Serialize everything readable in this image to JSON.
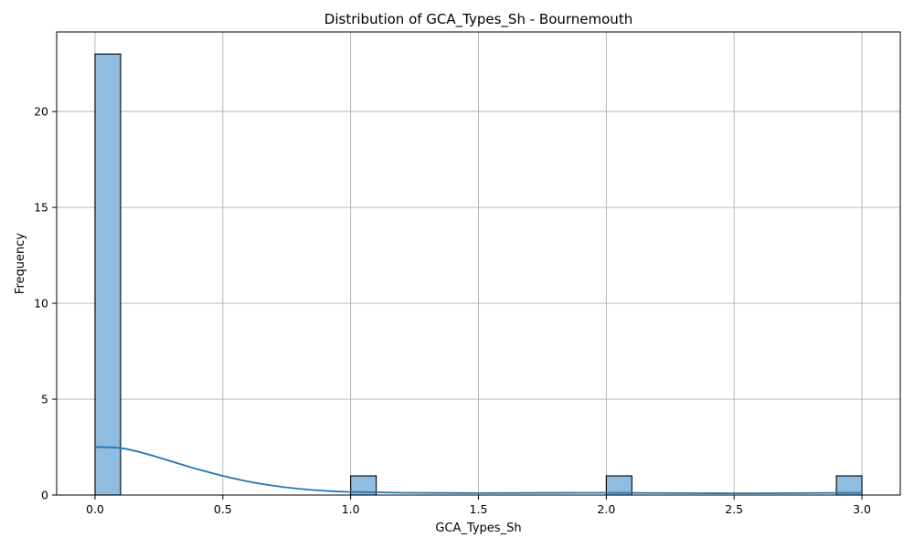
{
  "chart_data": {
    "type": "bar",
    "subtype": "histogram-with-kde",
    "title": "Distribution of GCA_Types_Sh - Bournemouth",
    "xlabel": "GCA_Types_Sh",
    "ylabel": "Frequency",
    "xlim": [
      -0.15,
      3.15
    ],
    "ylim": [
      0,
      24.15
    ],
    "x_ticks": [
      "0.0",
      "0.5",
      "1.0",
      "1.5",
      "2.0",
      "2.5",
      "3.0"
    ],
    "x_tick_values": [
      0,
      0.5,
      1,
      1.5,
      2,
      2.5,
      3
    ],
    "y_ticks": [
      "0",
      "5",
      "10",
      "15",
      "20"
    ],
    "y_tick_values": [
      0,
      5,
      10,
      15,
      20
    ],
    "grid": true,
    "bin_width": 0.1,
    "bins": [
      {
        "x0": 0.0,
        "x1": 0.1,
        "count": 23
      },
      {
        "x0": 1.0,
        "x1": 1.1,
        "count": 1
      },
      {
        "x0": 2.0,
        "x1": 2.1,
        "count": 1
      },
      {
        "x0": 2.9,
        "x1": 3.0,
        "count": 1
      }
    ],
    "kde": {
      "x": [
        0,
        0.1,
        0.2,
        0.3,
        0.4,
        0.5,
        0.6,
        0.7,
        0.8,
        0.9,
        1.0,
        1.2,
        1.5,
        2.0,
        2.5,
        3.0
      ],
      "y": [
        2.5,
        2.45,
        2.15,
        1.75,
        1.35,
        1.0,
        0.7,
        0.48,
        0.32,
        0.22,
        0.16,
        0.12,
        0.1,
        0.12,
        0.09,
        0.12
      ]
    },
    "colors": {
      "bar_fill": "#8fbcdf",
      "bar_edge": "#000000",
      "kde_line": "#1f77b4",
      "grid": "#b0b0b0"
    }
  }
}
